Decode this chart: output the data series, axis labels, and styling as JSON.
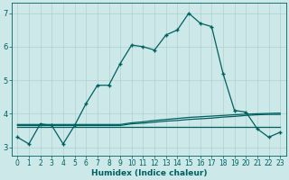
{
  "xlabel": "Humidex (Indice chaleur)",
  "bg_color": "#cce8e8",
  "grid_color": "#b0d0d0",
  "line_color": "#006060",
  "xlim": [
    -0.5,
    23.5
  ],
  "ylim": [
    2.75,
    7.3
  ],
  "xticks": [
    0,
    1,
    2,
    3,
    4,
    5,
    6,
    7,
    8,
    9,
    10,
    11,
    12,
    13,
    14,
    15,
    16,
    17,
    18,
    19,
    20,
    21,
    22,
    23
  ],
  "yticks": [
    3,
    4,
    5,
    6,
    7
  ],
  "main_line_x": [
    0,
    1,
    2,
    3,
    4,
    5,
    6,
    7,
    8,
    9,
    10,
    11,
    12,
    13,
    14,
    15,
    16,
    17,
    18,
    19,
    20,
    21,
    22,
    23
  ],
  "main_line_y": [
    3.3,
    3.1,
    3.7,
    3.65,
    3.1,
    3.65,
    4.3,
    4.85,
    4.85,
    5.5,
    6.05,
    6.0,
    5.9,
    6.35,
    6.5,
    7.0,
    6.7,
    6.6,
    5.2,
    4.1,
    4.05,
    3.55,
    3.3,
    3.45
  ],
  "flat_lines": [
    [
      3.62,
      3.62,
      3.62,
      3.62,
      3.62,
      3.62,
      3.62,
      3.62,
      3.62,
      3.62,
      3.62,
      3.62,
      3.62,
      3.62,
      3.62,
      3.62,
      3.62,
      3.62,
      3.62,
      3.62,
      3.62,
      3.62,
      3.62,
      3.62
    ],
    [
      3.65,
      3.65,
      3.65,
      3.65,
      3.65,
      3.65,
      3.65,
      3.65,
      3.65,
      3.65,
      3.7,
      3.72,
      3.75,
      3.78,
      3.8,
      3.83,
      3.85,
      3.87,
      3.9,
      3.92,
      3.95,
      3.97,
      3.98,
      3.98
    ],
    [
      3.68,
      3.68,
      3.68,
      3.68,
      3.68,
      3.68,
      3.68,
      3.68,
      3.68,
      3.68,
      3.73,
      3.76,
      3.8,
      3.83,
      3.86,
      3.89,
      3.91,
      3.93,
      3.95,
      3.97,
      3.99,
      4.0,
      4.01,
      4.02
    ]
  ],
  "tick_fontsize": 5.5,
  "xlabel_fontsize": 6.5
}
